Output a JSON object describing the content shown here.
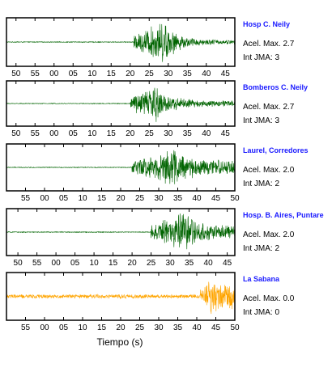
{
  "chart_data": {
    "type": "line",
    "xlabel": "Tiempo (s)",
    "panels": [
      {
        "station": "Hosp C. Neily",
        "acel_label": "Acel. Max. 2.7",
        "jma_label": "Int JMA: 3",
        "color": "#006400",
        "ticks": [
          50,
          55,
          0,
          5,
          10,
          15,
          20,
          25,
          30,
          35,
          40,
          45
        ],
        "tick_labels": [
          "50",
          "55",
          "00",
          "05",
          "10",
          "15",
          "20",
          "25",
          "30",
          "35",
          "40",
          "45"
        ],
        "xlim": [
          -12.5,
          47.5
        ],
        "onset": 21,
        "peak": 29,
        "end": 47.5,
        "pre_noise": 0.02,
        "tail": 0.1
      },
      {
        "station": "Bomberos C. Neily",
        "acel_label": "Acel. Max. 2.7",
        "jma_label": "Int JMA: 3",
        "color": "#006400",
        "ticks": [
          50,
          55,
          0,
          5,
          10,
          15,
          20,
          25,
          30,
          35,
          40,
          45
        ],
        "tick_labels": [
          "50",
          "55",
          "00",
          "05",
          "10",
          "15",
          "20",
          "25",
          "30",
          "35",
          "40",
          "45"
        ],
        "xlim": [
          -12.5,
          47.5
        ],
        "onset": 20,
        "peak": 27,
        "end": 47.5,
        "pre_noise": 0.02,
        "tail": 0.15
      },
      {
        "station": "Laurel, Corredores",
        "acel_label": "Acel. Max. 2.0",
        "jma_label": "Int JMA: 2",
        "color": "#006400",
        "ticks": [
          55,
          0,
          5,
          10,
          15,
          20,
          25,
          30,
          35,
          40,
          45,
          50
        ],
        "tick_labels": [
          "55",
          "00",
          "05",
          "10",
          "15",
          "20",
          "25",
          "30",
          "35",
          "40",
          "45",
          "50"
        ],
        "xlim": [
          -10,
          50
        ],
        "onset": 23,
        "peak": 34,
        "end": 50,
        "pre_noise": 0.02,
        "tail": 0.35
      },
      {
        "station": "Hosp. B. Aires, Puntare",
        "acel_label": "Acel. Max. 2.0",
        "jma_label": "Int JMA: 2",
        "color": "#006400",
        "ticks": [
          50,
          55,
          0,
          5,
          10,
          15,
          20,
          25,
          30,
          35,
          40,
          45
        ],
        "tick_labels": [
          "50",
          "55",
          "00",
          "05",
          "10",
          "15",
          "20",
          "25",
          "30",
          "35",
          "40",
          "45"
        ],
        "xlim": [
          -13,
          47
        ],
        "onset": 25,
        "peak": 34,
        "end": 47,
        "pre_noise": 0.02,
        "tail": 0.3
      },
      {
        "station": "La Sabana",
        "acel_label": "Acel. Max. 0.0",
        "jma_label": "Int JMA: 0",
        "color": "#ffa500",
        "ticks": [
          55,
          0,
          5,
          10,
          15,
          20,
          25,
          30,
          35,
          40,
          45,
          50
        ],
        "tick_labels": [
          "55",
          "00",
          "05",
          "10",
          "15",
          "20",
          "25",
          "30",
          "35",
          "40",
          "45",
          "50"
        ],
        "xlim": [
          -10,
          50
        ],
        "onset": 41,
        "peak": 44,
        "end": 50,
        "pre_noise": 0.1,
        "tail": 0.5
      }
    ]
  }
}
